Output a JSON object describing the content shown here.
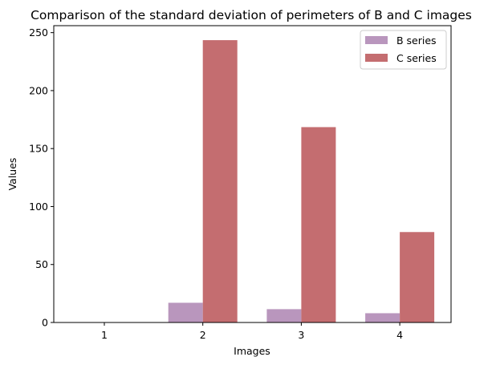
{
  "chart_data": {
    "type": "bar",
    "title": "Comparison of the standard deviation of perimeters of B and C images",
    "xlabel": "Images",
    "ylabel": "Values",
    "categories": [
      "1",
      "2",
      "3",
      "4"
    ],
    "series": [
      {
        "name": "B series",
        "values": [
          0,
          17,
          11.5,
          8
        ],
        "color": "#b996bd"
      },
      {
        "name": "C series",
        "values": [
          0,
          243.5,
          168.5,
          78
        ],
        "color": "#c46d70"
      }
    ],
    "ylim": [
      0,
      256
    ],
    "yticks": [
      0,
      50,
      100,
      150,
      200,
      250
    ],
    "grid": false,
    "legend": "top-right"
  }
}
